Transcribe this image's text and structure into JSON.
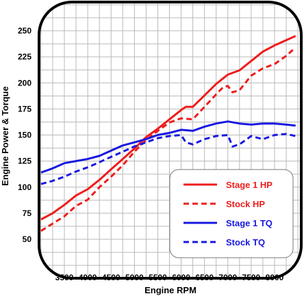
{
  "chart_data": {
    "type": "line",
    "title": "",
    "xlabel": "Engine RPM",
    "ylabel": "Engine Power & Torque",
    "xlim": [
      3000,
      8500
    ],
    "ylim": [
      40,
      260
    ],
    "x_ticks": [
      3500,
      4000,
      4500,
      5000,
      5500,
      6000,
      6500,
      7000,
      7500,
      8000
    ],
    "y_ticks": [
      50,
      75,
      100,
      125,
      150,
      175,
      200,
      225,
      250
    ],
    "grid": true,
    "legend_position": "bottom-right",
    "series": [
      {
        "name": "Stage 1 HP",
        "color": "#ee1c1c",
        "dash": "solid",
        "points": [
          [
            3000,
            69
          ],
          [
            3250,
            75
          ],
          [
            3500,
            83
          ],
          [
            3750,
            92
          ],
          [
            4000,
            98
          ],
          [
            4250,
            107
          ],
          [
            4500,
            117
          ],
          [
            4750,
            127
          ],
          [
            5000,
            137
          ],
          [
            5250,
            148
          ],
          [
            5500,
            156
          ],
          [
            5750,
            165
          ],
          [
            6000,
            174
          ],
          [
            6100,
            177
          ],
          [
            6250,
            177
          ],
          [
            6500,
            188
          ],
          [
            6750,
            199
          ],
          [
            7000,
            208
          ],
          [
            7250,
            212
          ],
          [
            7500,
            221
          ],
          [
            7750,
            230
          ],
          [
            8000,
            236
          ],
          [
            8250,
            241
          ],
          [
            8450,
            245
          ]
        ]
      },
      {
        "name": "Stock HP",
        "color": "#ee1c1c",
        "dash": "dashed",
        "points": [
          [
            3000,
            58
          ],
          [
            3250,
            65
          ],
          [
            3500,
            72
          ],
          [
            3750,
            82
          ],
          [
            4000,
            88
          ],
          [
            4250,
            100
          ],
          [
            4500,
            110
          ],
          [
            4750,
            121
          ],
          [
            5000,
            134
          ],
          [
            5250,
            145
          ],
          [
            5500,
            154
          ],
          [
            5750,
            162
          ],
          [
            6000,
            166
          ],
          [
            6250,
            165
          ],
          [
            6500,
            177
          ],
          [
            6750,
            189
          ],
          [
            6900,
            196
          ],
          [
            7000,
            197
          ],
          [
            7100,
            191
          ],
          [
            7250,
            193
          ],
          [
            7500,
            207
          ],
          [
            7750,
            214
          ],
          [
            8000,
            218
          ],
          [
            8250,
            226
          ],
          [
            8400,
            232
          ]
        ]
      },
      {
        "name": "Stage 1 TQ",
        "color": "#1818e0",
        "dash": "solid",
        "points": [
          [
            3000,
            114
          ],
          [
            3250,
            118
          ],
          [
            3500,
            123
          ],
          [
            3750,
            125
          ],
          [
            4000,
            127
          ],
          [
            4250,
            130
          ],
          [
            4500,
            135
          ],
          [
            4750,
            140
          ],
          [
            5000,
            143
          ],
          [
            5250,
            146
          ],
          [
            5500,
            150
          ],
          [
            5750,
            152
          ],
          [
            6000,
            155
          ],
          [
            6250,
            154
          ],
          [
            6500,
            158
          ],
          [
            6750,
            161
          ],
          [
            7000,
            163
          ],
          [
            7250,
            161
          ],
          [
            7500,
            160
          ],
          [
            7750,
            161
          ],
          [
            8000,
            161
          ],
          [
            8250,
            160
          ],
          [
            8450,
            159
          ]
        ]
      },
      {
        "name": "Stock TQ",
        "color": "#1818e0",
        "dash": "dashed",
        "points": [
          [
            3000,
            103
          ],
          [
            3250,
            106
          ],
          [
            3500,
            110
          ],
          [
            3750,
            115
          ],
          [
            4000,
            119
          ],
          [
            4250,
            124
          ],
          [
            4500,
            129
          ],
          [
            4750,
            134
          ],
          [
            5000,
            139
          ],
          [
            5250,
            143
          ],
          [
            5500,
            147
          ],
          [
            5750,
            149
          ],
          [
            6000,
            150
          ],
          [
            6100,
            143
          ],
          [
            6250,
            141
          ],
          [
            6500,
            146
          ],
          [
            6750,
            149
          ],
          [
            7000,
            150
          ],
          [
            7100,
            139
          ],
          [
            7250,
            141
          ],
          [
            7500,
            149
          ],
          [
            7750,
            146
          ],
          [
            8000,
            150
          ],
          [
            8250,
            151
          ],
          [
            8450,
            149
          ]
        ]
      }
    ]
  }
}
